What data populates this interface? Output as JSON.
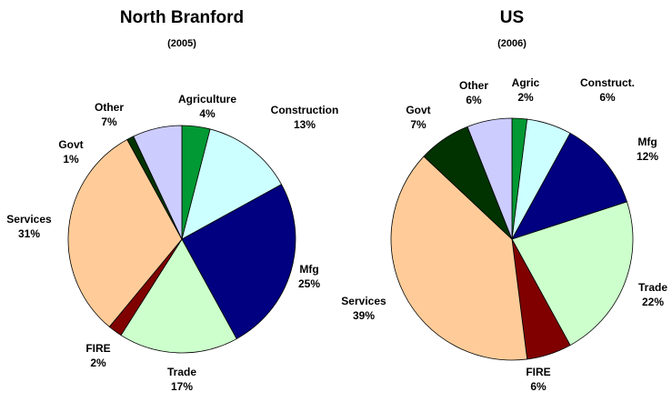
{
  "chart_data": [
    {
      "type": "pie",
      "title": "North Branford",
      "subtitle": "(2005)",
      "categories": [
        "Agriculture",
        "Construction",
        "Mfg",
        "Trade",
        "FIRE",
        "Services",
        "Govt",
        "Other"
      ],
      "values": [
        4,
        13,
        25,
        17,
        2,
        31,
        1,
        7
      ],
      "value_labels": [
        "4%",
        "13%",
        "25%",
        "17%",
        "2%",
        "31%",
        "1%",
        "7%"
      ],
      "colors": [
        "#009933",
        "#ccffff",
        "#000080",
        "#ccffcc",
        "#800000",
        "#ffcc99",
        "#003300",
        "#ccccff"
      ]
    },
    {
      "type": "pie",
      "title": "US",
      "subtitle": "(2006)",
      "categories": [
        "Agric",
        "Construct.",
        "Mfg",
        "Trade",
        "FIRE",
        "Services",
        "Govt",
        "Other"
      ],
      "values": [
        2,
        6,
        12,
        22,
        6,
        39,
        7,
        6
      ],
      "value_labels": [
        "2%",
        "6%",
        "12%",
        "22%",
        "6%",
        "39%",
        "7%",
        "6%"
      ],
      "colors": [
        "#009933",
        "#ccffff",
        "#000080",
        "#ccffcc",
        "#800000",
        "#ffcc99",
        "#003300",
        "#ccccff"
      ]
    }
  ]
}
